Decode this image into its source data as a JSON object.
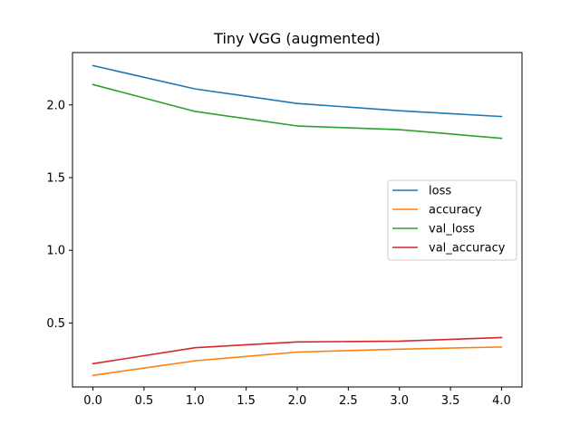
{
  "chart_data": {
    "type": "line",
    "title": "Tiny VGG (augmented)",
    "xlabel": "",
    "ylabel": "",
    "x": [
      0,
      1,
      2,
      3,
      4
    ],
    "xlim": [
      -0.2,
      4.2
    ],
    "ylim": [
      0.06,
      2.36
    ],
    "xticks": [
      0.0,
      0.5,
      1.0,
      1.5,
      2.0,
      2.5,
      3.0,
      3.5,
      4.0
    ],
    "xtick_labels": [
      "0.0",
      "0.5",
      "1.0",
      "1.5",
      "2.0",
      "2.5",
      "3.0",
      "3.5",
      "4.0"
    ],
    "yticks": [
      0.5,
      1.0,
      1.5,
      2.0
    ],
    "ytick_labels": [
      "0.5",
      "1.0",
      "1.5",
      "2.0"
    ],
    "grid": false,
    "legend_position": "center-right",
    "series": [
      {
        "name": "loss",
        "color": "#1f77b4",
        "values": [
          2.27,
          2.11,
          2.01,
          1.96,
          1.92
        ]
      },
      {
        "name": "accuracy",
        "color": "#ff7f0e",
        "values": [
          0.14,
          0.24,
          0.3,
          0.32,
          0.335
        ]
      },
      {
        "name": "val_loss",
        "color": "#2ca02c",
        "values": [
          2.14,
          1.955,
          1.855,
          1.83,
          1.77
        ]
      },
      {
        "name": "val_accuracy",
        "color": "#d62728",
        "values": [
          0.22,
          0.33,
          0.37,
          0.375,
          0.4
        ]
      }
    ]
  }
}
